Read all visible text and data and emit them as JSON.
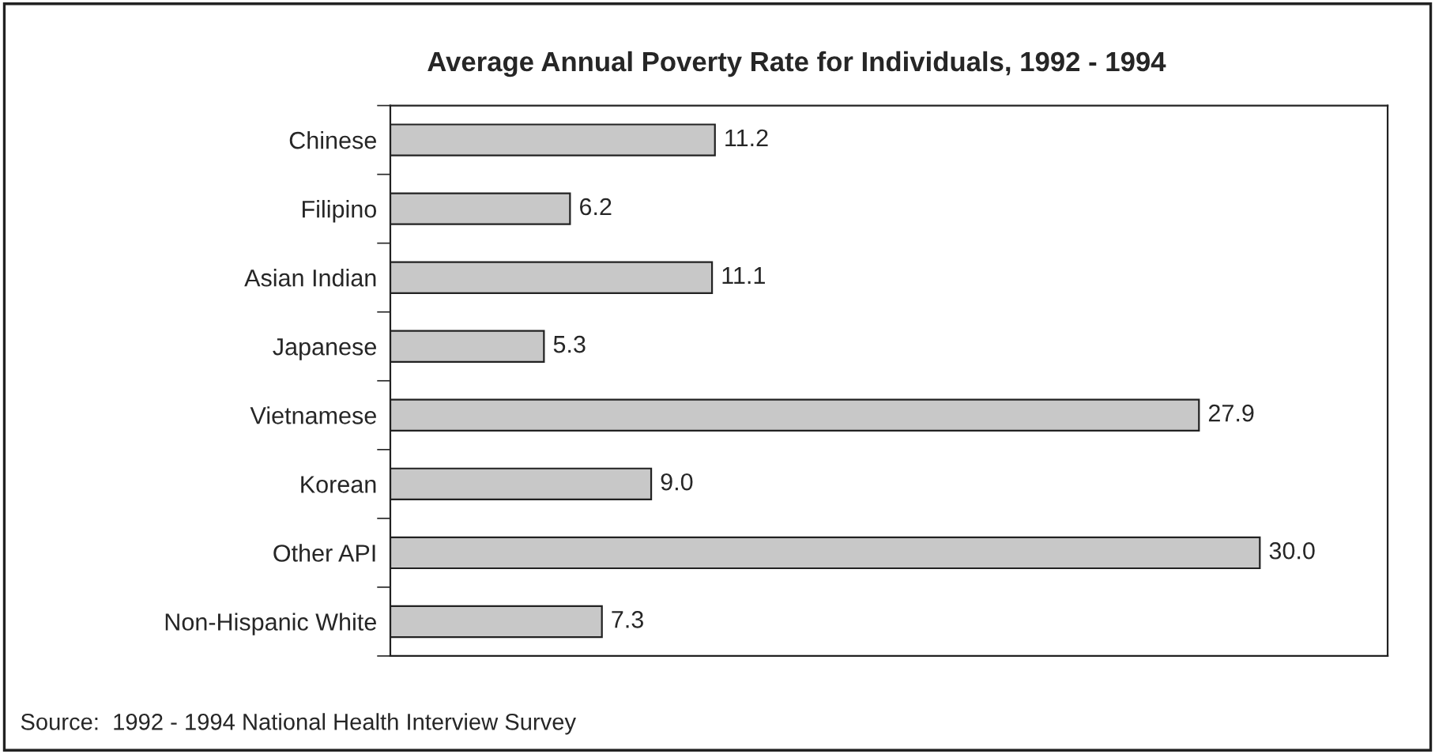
{
  "chart_data": {
    "type": "bar",
    "orientation": "horizontal",
    "title": "Average Annual Poverty Rate for Individuals, 1992 - 1994",
    "categories": [
      "Chinese",
      "Filipino",
      "Asian Indian",
      "Japanese",
      "Vietnamese",
      "Korean",
      "Other API",
      "Non-Hispanic White"
    ],
    "values": [
      11.2,
      6.2,
      11.1,
      5.3,
      27.9,
      9.0,
      30.0,
      7.3
    ],
    "value_labels": [
      "11.2",
      "6.2",
      "11.1",
      "5.3",
      "27.9",
      "9.0",
      "30.0",
      "7.3"
    ],
    "color": "#c8c8c8",
    "grid": false,
    "legend": false,
    "annotations": [
      "Source:  1992 - 1994 National Health Interview Survey"
    ]
  }
}
